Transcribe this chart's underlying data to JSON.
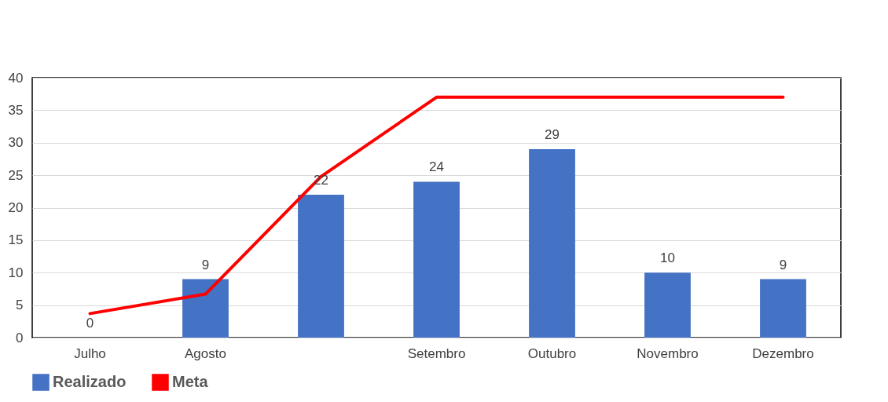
{
  "chart_data": {
    "type": "bar",
    "categories": [
      "Julho",
      "Agosto",
      null,
      "Setembro",
      "Outubro",
      "Novembro",
      "Dezembro"
    ],
    "series": [
      {
        "name": "Realizado",
        "color": "#4472c4",
        "values": [
          0,
          9,
          22,
          24,
          29,
          10,
          9
        ],
        "value_labels": [
          "0",
          "9",
          "22",
          "24",
          "29",
          "10",
          "9"
        ]
      },
      {
        "name": "Meta",
        "type": "line",
        "color": "#ff0000",
        "values": [
          3.7,
          6.7,
          24.8,
          37,
          37,
          37,
          37
        ]
      }
    ],
    "ylim": [
      0,
      40
    ],
    "yticks": [
      0,
      5,
      10,
      15,
      20,
      25,
      30,
      35,
      40
    ],
    "grid": "y",
    "legend": "bottom"
  }
}
